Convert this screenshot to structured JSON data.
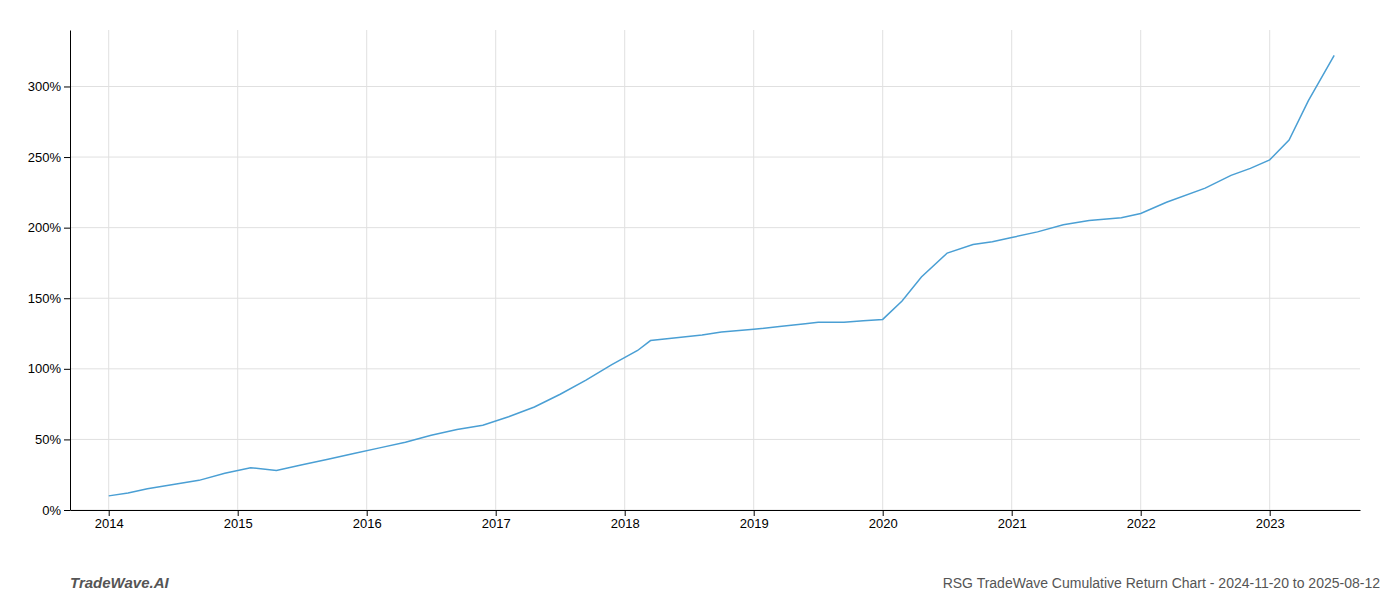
{
  "chart_data": {
    "type": "line",
    "title": "RSG TradeWave Cumulative Return Chart - 2024-11-20 to 2025-08-12",
    "annotations": [
      "TradeWave.AI"
    ],
    "x": [
      2014.0,
      2014.15,
      2014.3,
      2014.5,
      2014.7,
      2014.9,
      2015.1,
      2015.3,
      2015.5,
      2015.7,
      2015.9,
      2016.1,
      2016.3,
      2016.5,
      2016.7,
      2016.9,
      2017.1,
      2017.3,
      2017.5,
      2017.7,
      2017.9,
      2018.1,
      2018.2,
      2018.4,
      2018.6,
      2018.75,
      2019.0,
      2019.2,
      2019.4,
      2019.5,
      2019.7,
      2019.85,
      2020.0,
      2020.15,
      2020.3,
      2020.5,
      2020.7,
      2020.85,
      2021.0,
      2021.2,
      2021.4,
      2021.6,
      2021.85,
      2022.0,
      2022.2,
      2022.5,
      2022.7,
      2022.85,
      2023.0,
      2023.15,
      2023.3,
      2023.5
    ],
    "values": [
      10,
      12,
      15,
      18,
      21,
      26,
      30,
      28,
      32,
      36,
      40,
      44,
      48,
      53,
      57,
      60,
      66,
      73,
      82,
      92,
      103,
      113,
      120,
      122,
      124,
      126,
      128,
      130,
      132,
      133,
      133,
      134,
      135,
      148,
      165,
      182,
      188,
      190,
      193,
      197,
      202,
      205,
      207,
      210,
      218,
      228,
      237,
      242,
      248,
      262,
      290,
      322
    ],
    "color": "#4a9fd4",
    "xlim": [
      2013.7,
      2023.7
    ],
    "ylim": [
      0,
      340
    ],
    "xticks": [
      2014,
      2015,
      2016,
      2017,
      2018,
      2019,
      2020,
      2021,
      2022,
      2023
    ],
    "yticks": [
      {
        "value": 0,
        "label": "0%"
      },
      {
        "value": 50,
        "label": "50%"
      },
      {
        "value": 100,
        "label": "100%"
      },
      {
        "value": 150,
        "label": "150%"
      },
      {
        "value": 200,
        "label": "200%"
      },
      {
        "value": 250,
        "label": "250%"
      },
      {
        "value": 300,
        "label": "300%"
      }
    ],
    "grid": true
  }
}
